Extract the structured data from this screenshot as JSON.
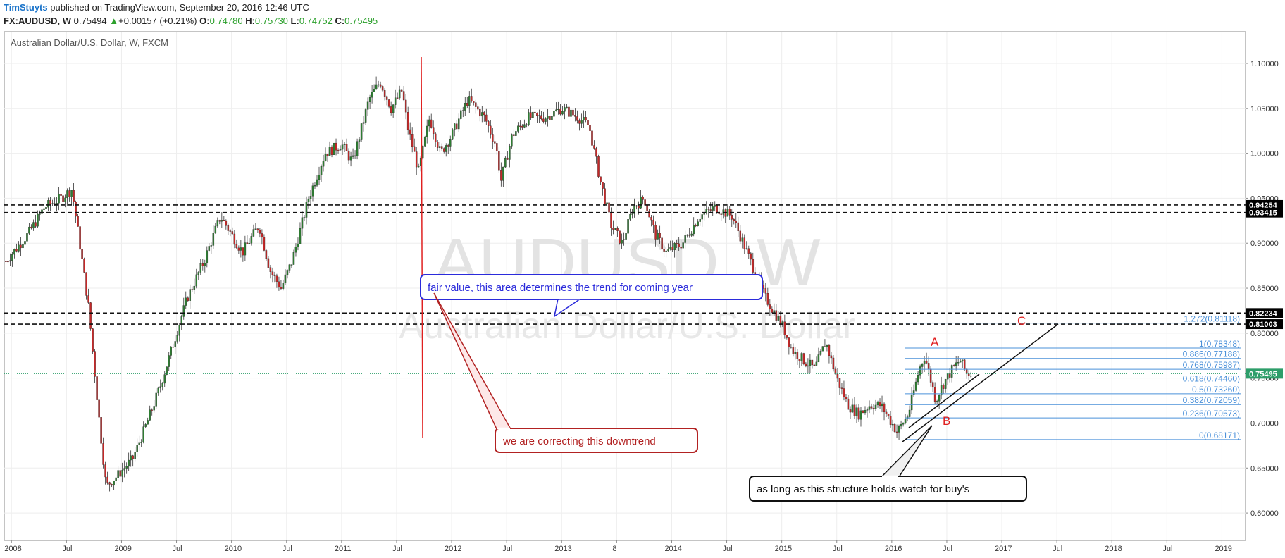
{
  "header": {
    "author": "TimStuyts",
    "published_text": "published on TradingView.com, September 20, 2016 12:46 UTC",
    "symbol": "FX:AUDUSD, W",
    "price": "0.75494",
    "change": "+0.00157 (+0.21%)",
    "open_label": "O:",
    "open_value": "0.74780",
    "high_label": "H:",
    "high_value": "0.75730",
    "low_label": "L:",
    "low_value": "0.74752",
    "close_label": "C:",
    "close_value": "0.75495"
  },
  "chart_data": {
    "type": "candlestick",
    "title": "Australian Dollar/U.S. Dollar, W, FXCM",
    "watermark_symbol": "AUDUSD, W",
    "watermark_name": "Australian Dollar/U.S. Dollar",
    "ylim": [
      0.5777,
      1.1196
    ],
    "y_ticks": [
      "1.10000",
      "1.05000",
      "1.00000",
      "0.95000",
      "0.90000",
      "0.85000",
      "0.80000",
      "0.75000",
      "0.70000",
      "0.65000",
      "0.60000"
    ],
    "x_ticks": [
      {
        "t": 2008.0,
        "label": "2008"
      },
      {
        "t": 2008.5,
        "label": "Jul"
      },
      {
        "t": 2009.0,
        "label": "2009"
      },
      {
        "t": 2009.5,
        "label": "Jul"
      },
      {
        "t": 2010.0,
        "label": "2010"
      },
      {
        "t": 2010.5,
        "label": "Jul"
      },
      {
        "t": 2011.0,
        "label": "2011"
      },
      {
        "t": 2011.5,
        "label": "Jul"
      },
      {
        "t": 2012.0,
        "label": "2012"
      },
      {
        "t": 2012.5,
        "label": "Jul"
      },
      {
        "t": 2013.0,
        "label": "2013"
      },
      {
        "t": 2013.5,
        "label": "8"
      },
      {
        "t": 2014.0,
        "label": "2014"
      },
      {
        "t": 2014.5,
        "label": "Jul"
      },
      {
        "t": 2015.0,
        "label": "2015"
      },
      {
        "t": 2015.5,
        "label": "Jul"
      },
      {
        "t": 2016.0,
        "label": "2016"
      },
      {
        "t": 2016.5,
        "label": "Jul"
      },
      {
        "t": 2017.0,
        "label": "2017"
      },
      {
        "t": 2017.5,
        "label": "Jul"
      },
      {
        "t": 2018.0,
        "label": "2018"
      },
      {
        "t": 2018.5,
        "label": "Jul"
      },
      {
        "t": 2019.0,
        "label": "2019"
      }
    ],
    "price_path": [
      [
        2007.95,
        0.88
      ],
      [
        2008.15,
        0.91
      ],
      [
        2008.3,
        0.94
      ],
      [
        2008.45,
        0.95
      ],
      [
        2008.55,
        0.96
      ],
      [
        2008.62,
        0.9
      ],
      [
        2008.7,
        0.83
      ],
      [
        2008.8,
        0.7
      ],
      [
        2008.86,
        0.63
      ],
      [
        2008.95,
        0.64
      ],
      [
        2009.1,
        0.66
      ],
      [
        2009.2,
        0.69
      ],
      [
        2009.35,
        0.74
      ],
      [
        2009.5,
        0.8
      ],
      [
        2009.6,
        0.84
      ],
      [
        2009.75,
        0.88
      ],
      [
        2009.9,
        0.93
      ],
      [
        2010.0,
        0.91
      ],
      [
        2010.1,
        0.89
      ],
      [
        2010.25,
        0.92
      ],
      [
        2010.35,
        0.87
      ],
      [
        2010.45,
        0.85
      ],
      [
        2010.55,
        0.88
      ],
      [
        2010.7,
        0.95
      ],
      [
        2010.85,
        1.0
      ],
      [
        2011.0,
        1.01
      ],
      [
        2011.1,
        0.99
      ],
      [
        2011.25,
        1.06
      ],
      [
        2011.35,
        1.08
      ],
      [
        2011.45,
        1.05
      ],
      [
        2011.55,
        1.07
      ],
      [
        2011.6,
        1.03
      ],
      [
        2011.7,
        0.98
      ],
      [
        2011.8,
        1.04
      ],
      [
        2011.9,
        1.0
      ],
      [
        2012.0,
        1.02
      ],
      [
        2012.15,
        1.06
      ],
      [
        2012.3,
        1.04
      ],
      [
        2012.4,
        1.01
      ],
      [
        2012.45,
        0.97
      ],
      [
        2012.55,
        1.02
      ],
      [
        2012.7,
        1.04
      ],
      [
        2012.85,
        1.04
      ],
      [
        2013.0,
        1.05
      ],
      [
        2013.15,
        1.04
      ],
      [
        2013.25,
        1.03
      ],
      [
        2013.35,
        0.97
      ],
      [
        2013.45,
        0.92
      ],
      [
        2013.55,
        0.9
      ],
      [
        2013.65,
        0.94
      ],
      [
        2013.75,
        0.95
      ],
      [
        2013.85,
        0.91
      ],
      [
        2013.95,
        0.89
      ],
      [
        2014.1,
        0.9
      ],
      [
        2014.25,
        0.93
      ],
      [
        2014.4,
        0.94
      ],
      [
        2014.55,
        0.93
      ],
      [
        2014.65,
        0.9
      ],
      [
        2014.75,
        0.87
      ],
      [
        2014.85,
        0.84
      ],
      [
        2015.0,
        0.81
      ],
      [
        2015.1,
        0.78
      ],
      [
        2015.2,
        0.77
      ],
      [
        2015.3,
        0.76
      ],
      [
        2015.4,
        0.79
      ],
      [
        2015.5,
        0.75
      ],
      [
        2015.6,
        0.72
      ],
      [
        2015.7,
        0.71
      ],
      [
        2015.8,
        0.72
      ],
      [
        2015.9,
        0.72
      ],
      [
        2016.0,
        0.7
      ],
      [
        2016.05,
        0.69
      ],
      [
        2016.15,
        0.71
      ],
      [
        2016.25,
        0.76
      ],
      [
        2016.3,
        0.775
      ],
      [
        2016.37,
        0.74
      ],
      [
        2016.4,
        0.725
      ],
      [
        2016.45,
        0.74
      ],
      [
        2016.55,
        0.76
      ],
      [
        2016.62,
        0.77
      ],
      [
        2016.68,
        0.755
      ],
      [
        2016.72,
        0.755
      ]
    ],
    "horizontal_levels": [
      "0.94254",
      "0.93415",
      "0.82234",
      "0.81003"
    ],
    "last_price": "0.75495",
    "fibonacci": [
      {
        "value": 0.81118,
        "label": "1.272(0.81118)"
      },
      {
        "value": 0.78348,
        "label": "1(0.78348)"
      },
      {
        "value": 0.77188,
        "label": "0.886(0.77188)"
      },
      {
        "value": 0.75987,
        "label": "0.768(0.75987)"
      },
      {
        "value": 0.7446,
        "label": "0.618(0.74460)"
      },
      {
        "value": 0.7326,
        "label": "0.5(0.73260)"
      },
      {
        "value": 0.72059,
        "label": "0.382(0.72059)"
      },
      {
        "value": 0.70573,
        "label": "0.236(0.70573)"
      },
      {
        "value": 0.68171,
        "label": "0(0.68171)"
      }
    ],
    "abc_labels": [
      "A",
      "B",
      "C"
    ],
    "annotations": [
      {
        "id": "fair",
        "text": "fair value, this area determines the trend for coming year"
      },
      {
        "id": "correcting",
        "text": "we are correcting this downtrend"
      },
      {
        "id": "structure",
        "text": "as long as this structure holds watch for buy's"
      }
    ],
    "grid": true
  }
}
